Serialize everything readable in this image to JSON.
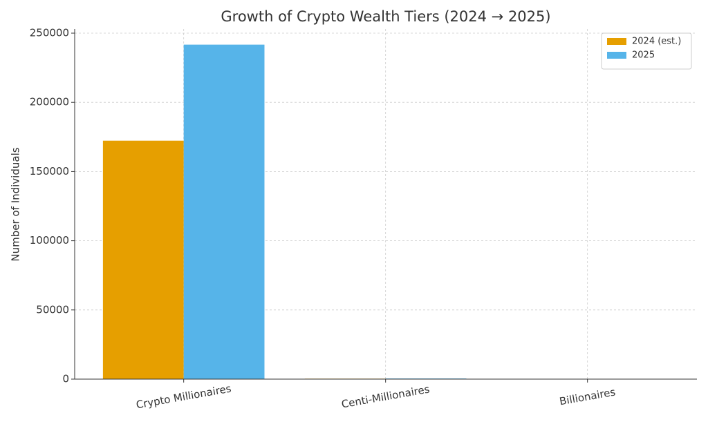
{
  "chart_data": {
    "type": "bar",
    "title": "Growth of Crypto Wealth Tiers (2024 → 2025)",
    "y_label": "Number of Individuals",
    "categories": [
      "Crypto Millionaires",
      "Centi-Millionaires",
      "Billionaires"
    ],
    "series": [
      {
        "name": "2024 (est.)",
        "color": "#e69f00",
        "values": [
          172300,
          325,
          28
        ]
      },
      {
        "name": "2025",
        "color": "#56b4e9",
        "values": [
          241700,
          450,
          36
        ]
      }
    ],
    "ylim": [
      0,
      250000
    ],
    "yticks": [
      0,
      50000,
      100000,
      150000,
      200000,
      250000
    ],
    "grid": true,
    "legend": "upper-right"
  }
}
